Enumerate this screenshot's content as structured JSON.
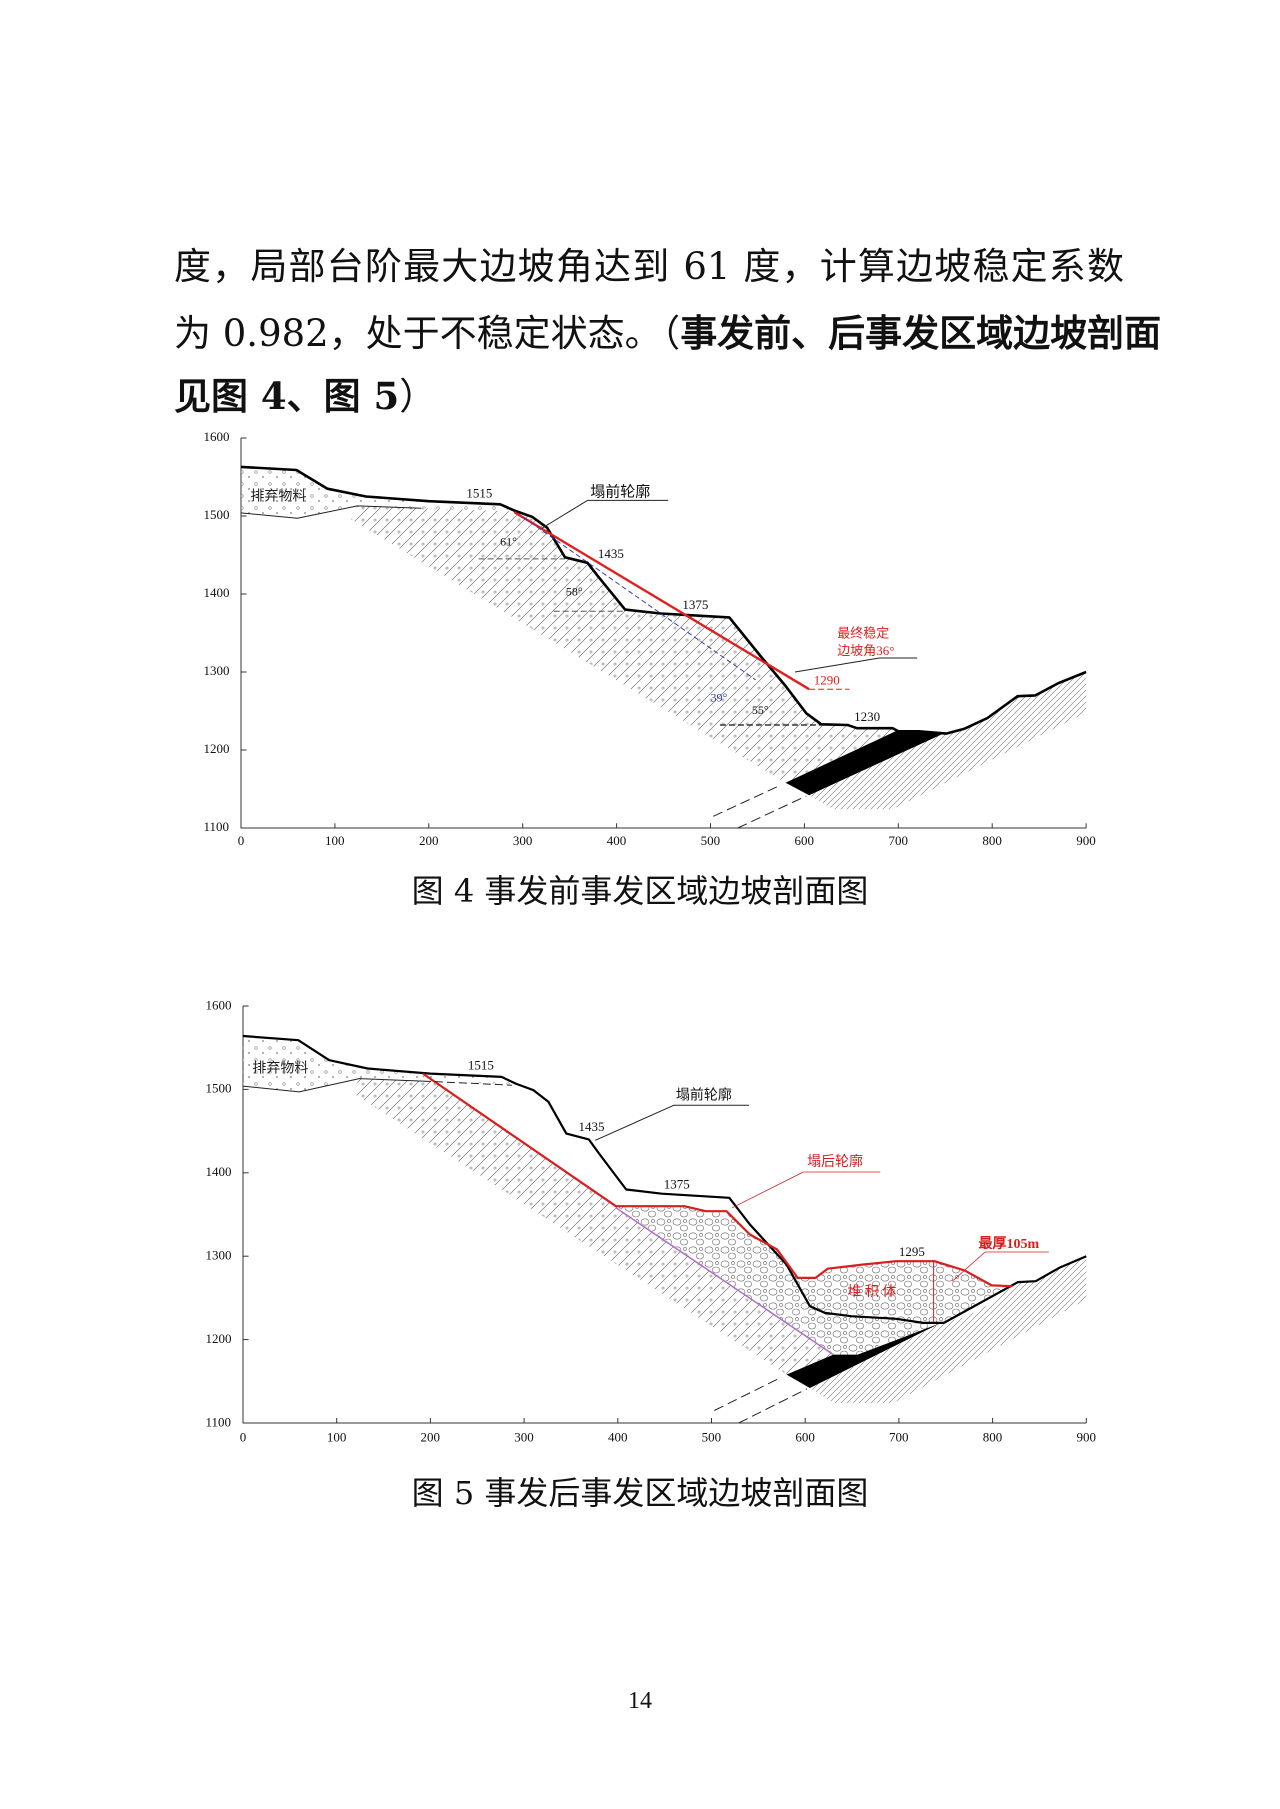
{
  "paragraph": {
    "line1": "度，局部台阶最大边坡角达到 61 度，计算边坡稳定系数",
    "line2_normal": "为 0.982，处于不稳定状态。（",
    "line2_bold": "事发前、后事发区域边坡剖面",
    "line3_bold": "见图 4、图 5",
    "line3_end": "）"
  },
  "axes": {
    "y_ticks": [
      "1600",
      "1500",
      "1400",
      "1300",
      "1200",
      "1100"
    ],
    "x_ticks": [
      "0",
      "100",
      "200",
      "300",
      "400",
      "500",
      "600",
      "700",
      "800",
      "900"
    ]
  },
  "figure4": {
    "caption": "图 4  事发前事发区域边坡剖面图",
    "labels": {
      "waste": "排弃物料",
      "e1515": "1515",
      "pre_profile": "塌前轮廓",
      "a61": "61°",
      "e1435": "1435",
      "a58": "58°",
      "e1375": "1375",
      "final_angle_1": "最终稳定",
      "final_angle_2": "边坡角36°",
      "e1290": "1290",
      "a39": "39°",
      "a55": "55°",
      "e1230": "1230"
    },
    "colors": {
      "red": "#e02020",
      "blue": "#3a3ab8"
    }
  },
  "figure5": {
    "caption": "图 5  事发后事发区域边坡剖面图",
    "labels": {
      "waste": "排弃物料",
      "e1515": "1515",
      "pre_profile": "塌前轮廓",
      "e1435": "1435",
      "post_profile": "塌后轮廓",
      "e1375": "1375",
      "e1295": "1295",
      "max_thick": "最厚105m",
      "deposit": "堆 积 体"
    },
    "colors": {
      "red": "#d81e1e",
      "purple": "#b070c8"
    }
  },
  "page_number": "14"
}
